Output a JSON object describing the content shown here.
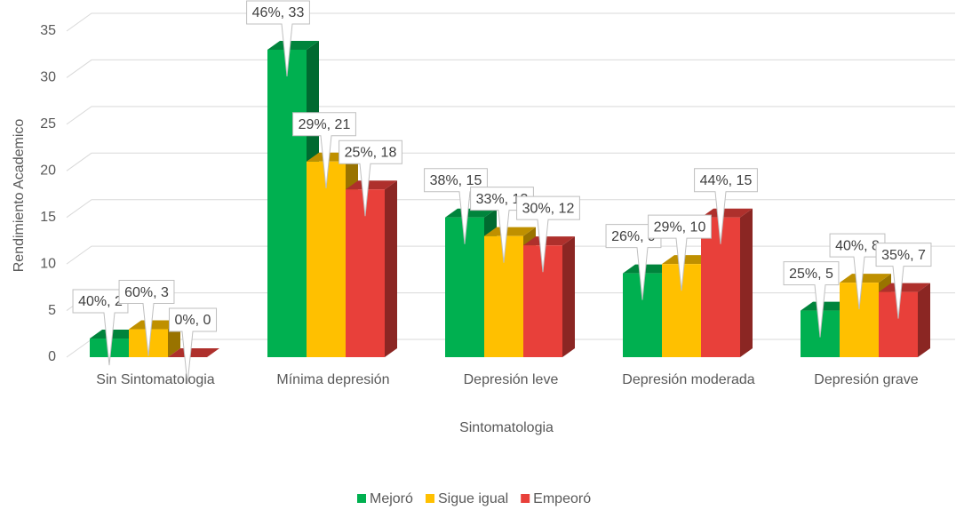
{
  "chart_data": {
    "type": "bar3d",
    "x_label": "Sintomatologia",
    "y_label": "Rendimiento Academico",
    "categories": [
      "Sin Sintomatologia",
      "Mínima depresión",
      "Depresión leve",
      "Depresión moderada",
      "Depresión grave"
    ],
    "series": [
      {
        "name": "Mejoró",
        "color": "#00b050",
        "values": [
          2,
          33,
          15,
          9,
          5
        ],
        "value_labels": [
          "40%, 2",
          "46%, 33",
          "38%, 15",
          "26%, 9",
          "25%, 5"
        ]
      },
      {
        "name": "Sigue igual",
        "color": "#ffc000",
        "values": [
          3,
          21,
          13,
          10,
          8
        ],
        "value_labels": [
          "60%, 3",
          "29%, 21",
          "33%, 13",
          "29%, 10",
          "40%, 8"
        ]
      },
      {
        "name": "Empeoró",
        "color": "#e8403a",
        "values": [
          0,
          18,
          12,
          15,
          7
        ],
        "value_labels": [
          "0%, 0",
          "25%, 18",
          "30%, 12",
          "44%, 15",
          "35%, 7"
        ]
      }
    ],
    "ylim": [
      0,
      35
    ],
    "yticks": [
      0,
      5,
      10,
      15,
      20,
      25,
      30,
      35
    ],
    "grid": true,
    "legend": "bottom"
  }
}
